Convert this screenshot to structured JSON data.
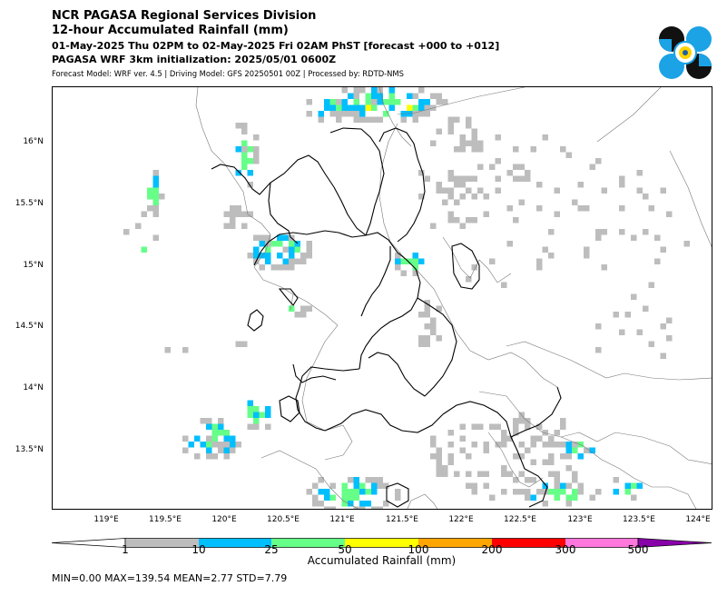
{
  "header": {
    "title_line1": "NCR PAGASA Regional Services Division",
    "title_line2": "12-hour Accumulated Rainfall (mm)",
    "period": "01-May-2025 Thu 02PM to 02-May-2025 Fri 02AM PhST [forecast +000 to +012]",
    "initialization": "PAGASA WRF 3km initialization: 2025/05/01 0600Z",
    "model_info": "Forecast Model: WRF ver. 4.5 | Driving Model: GFS 20250501 00Z | Processed by: RDTD-NMS"
  },
  "logo": {
    "icon": "pagasa-logo-icon",
    "colors": [
      "#000000",
      "#1ba3e6",
      "#ffd400"
    ]
  },
  "map": {
    "lat_labels": [
      "16°N",
      "15.5°N",
      "15°N",
      "14.5°N",
      "14°N",
      "13.5°N"
    ],
    "lon_labels": [
      "119°E",
      "119.5°E",
      "120°E",
      "120.5°E",
      "121°E",
      "121.5°E",
      "122°E",
      "122.5°E",
      "123°E",
      "123.5°E",
      "124°E"
    ],
    "extent": {
      "lon": [
        118.55,
        124.05
      ],
      "lat": [
        13.0,
        16.45
      ]
    }
  },
  "colorbar": {
    "label": "Accumulated Rainfall (mm)",
    "ticks": [
      "1",
      "10",
      "25",
      "50",
      "100",
      "200",
      "300",
      "500"
    ],
    "colors": [
      "#ffffff",
      "#bdbdbd",
      "#00bfff",
      "#66ff88",
      "#ffff00",
      "#ffa500",
      "#ff0000",
      "#ff77dd",
      "#8800aa"
    ]
  },
  "stats": "MIN=0.00   MAX=139.54   MEAN=2.77   STD=7.79"
}
